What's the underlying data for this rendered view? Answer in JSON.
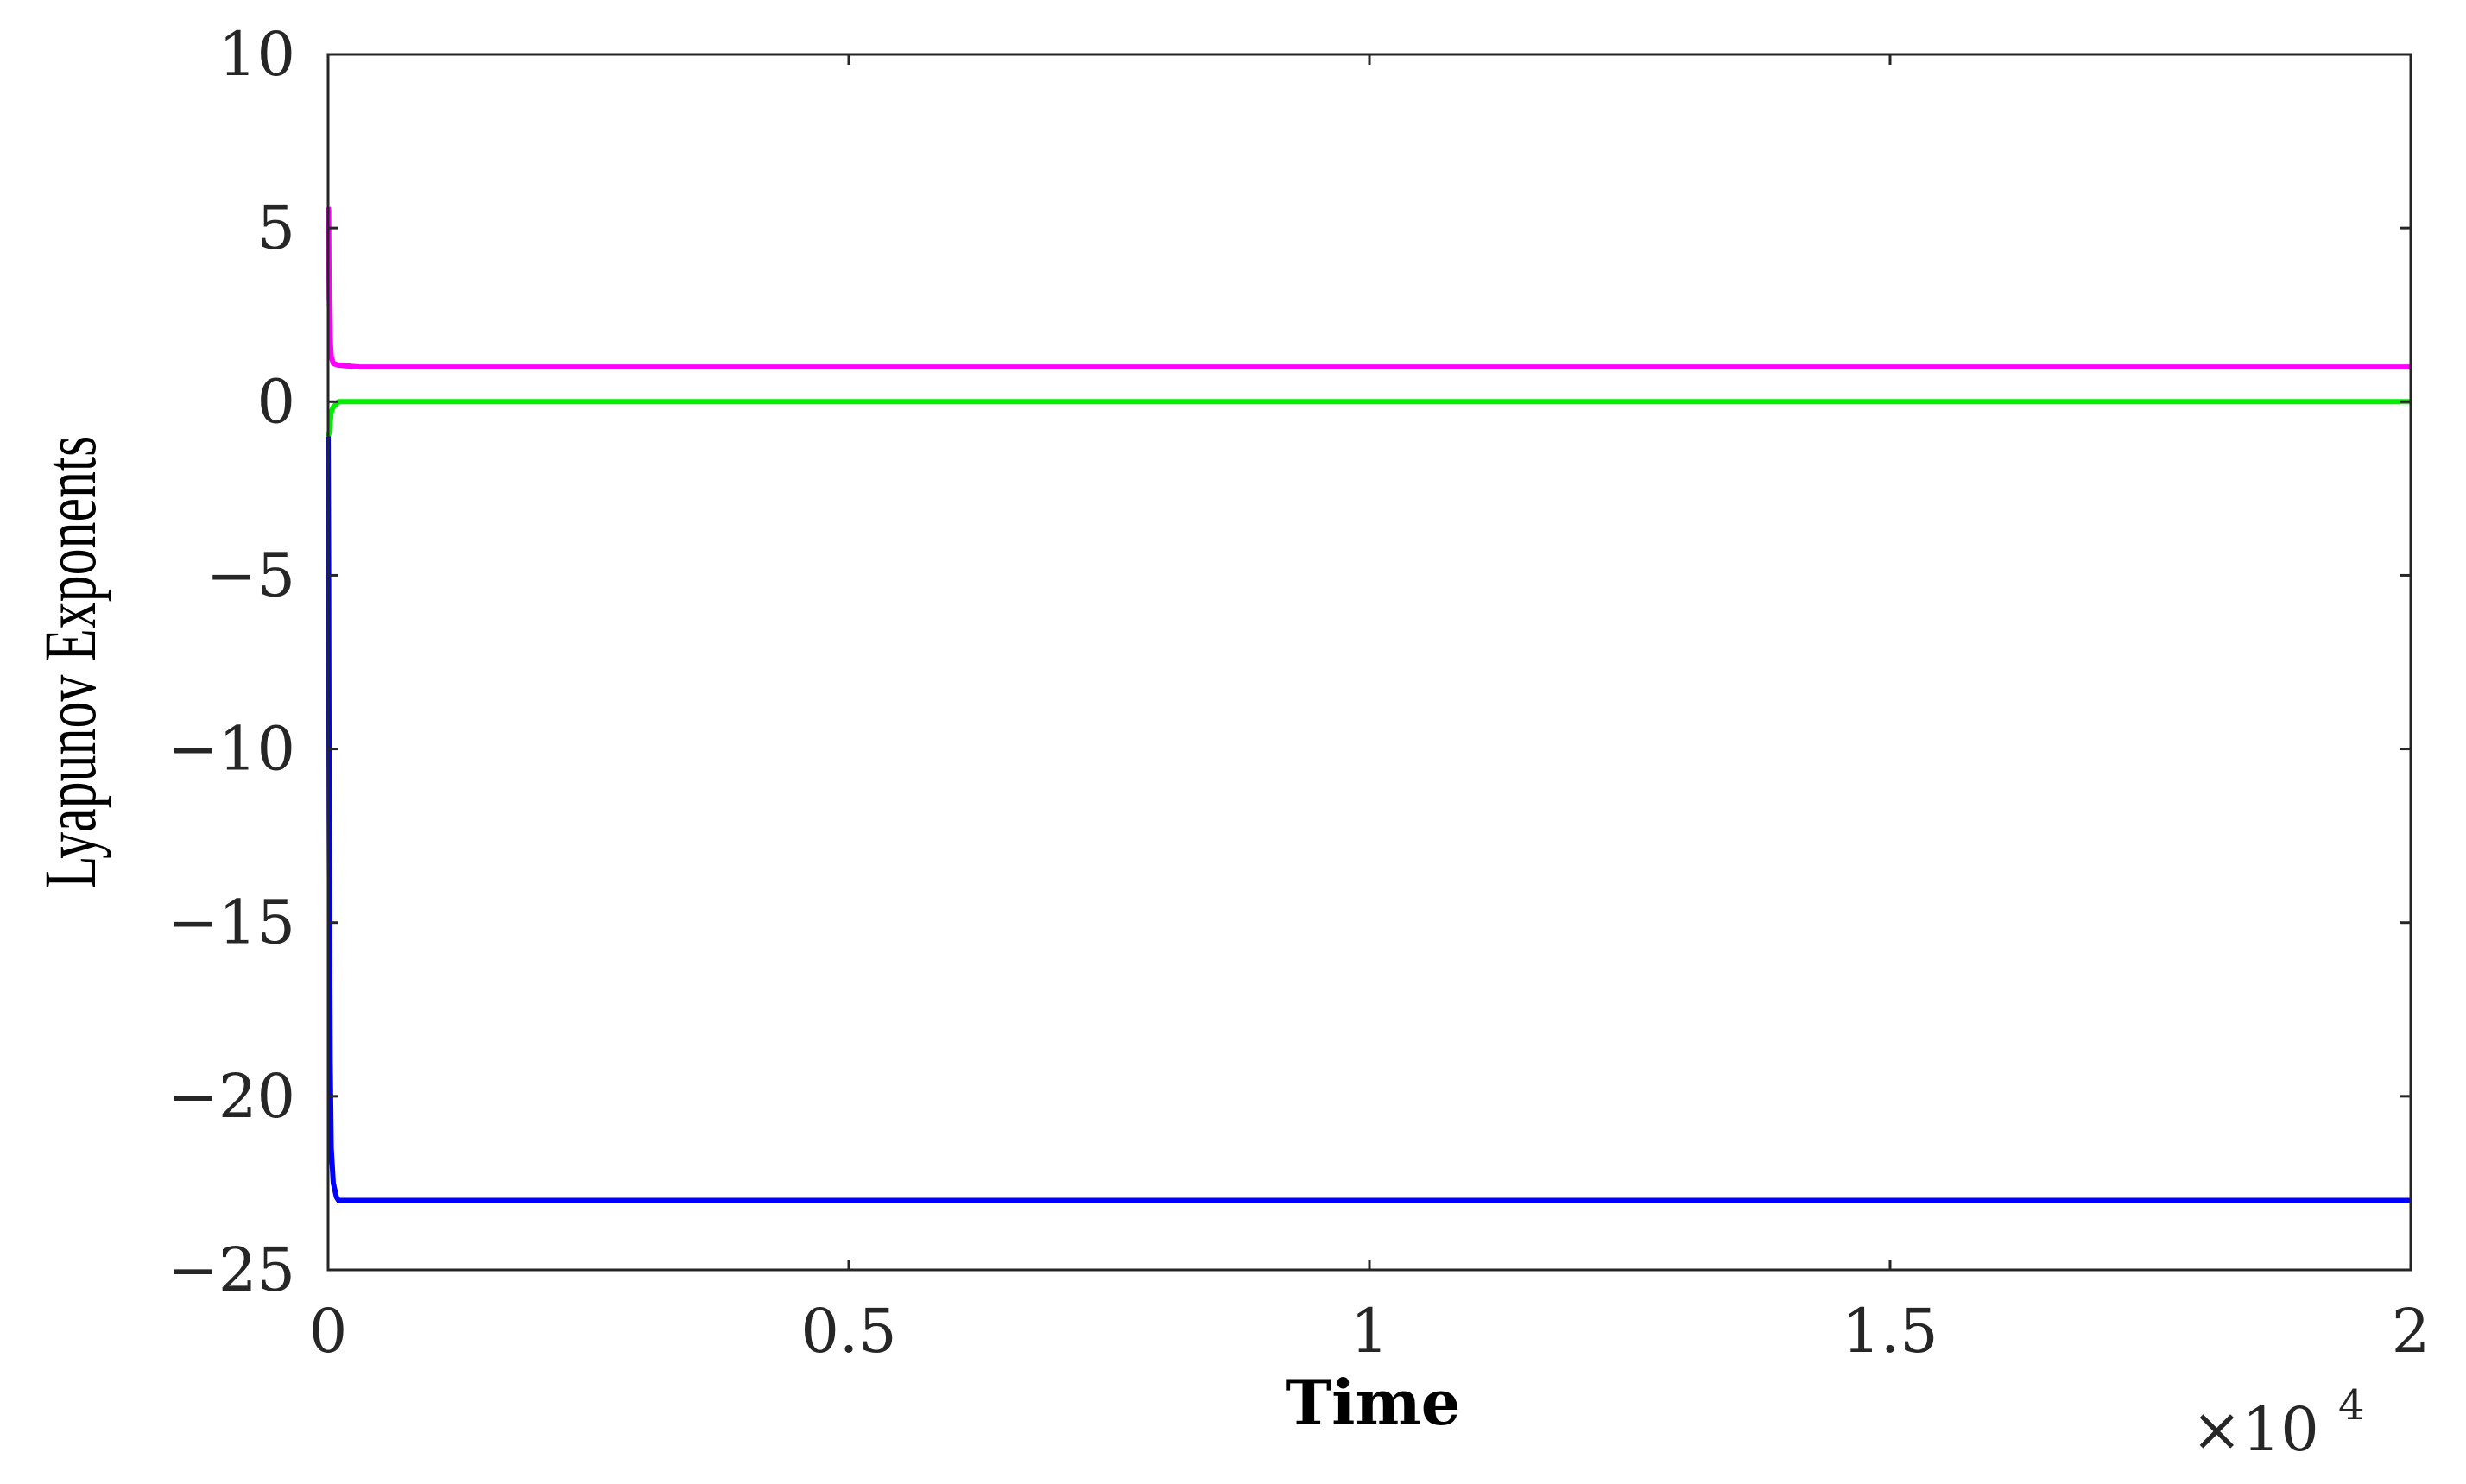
{
  "chart_data": {
    "type": "line",
    "title": "",
    "xlabel": "Time",
    "ylabel": "Lyapunov Exponents",
    "x_multiplier": {
      "base": "×10",
      "exponent": "4"
    },
    "xlim": [
      0,
      2
    ],
    "ylim": [
      -25,
      10
    ],
    "x_ticks": [
      0,
      0.5,
      1,
      1.5,
      2
    ],
    "x_tick_labels": [
      "0",
      "0.5",
      "1",
      "1.5",
      "2"
    ],
    "y_ticks": [
      10,
      5,
      0,
      -5,
      -10,
      -15,
      -20,
      -25
    ],
    "y_tick_labels": [
      "10",
      "5",
      "0",
      "−5",
      "−10",
      "−15",
      "−20",
      "−25"
    ],
    "grid": false,
    "legend": "none",
    "series": [
      {
        "color": "#ff00ff",
        "x": [
          0,
          0.0005,
          0.001,
          0.002,
          0.003,
          0.005,
          0.01,
          0.03,
          0.1,
          0.5,
          1,
          1.5,
          2
        ],
        "y": [
          5.6,
          5.5,
          3.0,
          1.8,
          1.3,
          1.1,
          1.05,
          1.0,
          1.0,
          1.0,
          1.0,
          1.0,
          1.0
        ]
      },
      {
        "color": "#00ee00",
        "x": [
          0,
          0.001,
          0.002,
          0.003,
          0.005,
          0.01,
          0.03,
          0.1,
          0.5,
          1,
          1.5,
          2
        ],
        "y": [
          -1.0,
          -0.9,
          -0.6,
          -0.3,
          -0.15,
          0.0,
          0.0,
          0.0,
          0.0,
          0.0,
          0.0,
          0.0
        ]
      },
      {
        "color": "#0000ff",
        "x": [
          0,
          0.0005,
          0.001,
          0.002,
          0.003,
          0.005,
          0.008,
          0.01,
          0.03,
          0.1,
          0.5,
          1,
          1.5,
          2
        ],
        "y": [
          -1.0,
          -5.0,
          -12.0,
          -19.0,
          -21.5,
          -22.5,
          -22.9,
          -23.0,
          -23.0,
          -23.0,
          -23.0,
          -23.0,
          -23.0,
          -23.0
        ]
      }
    ]
  }
}
